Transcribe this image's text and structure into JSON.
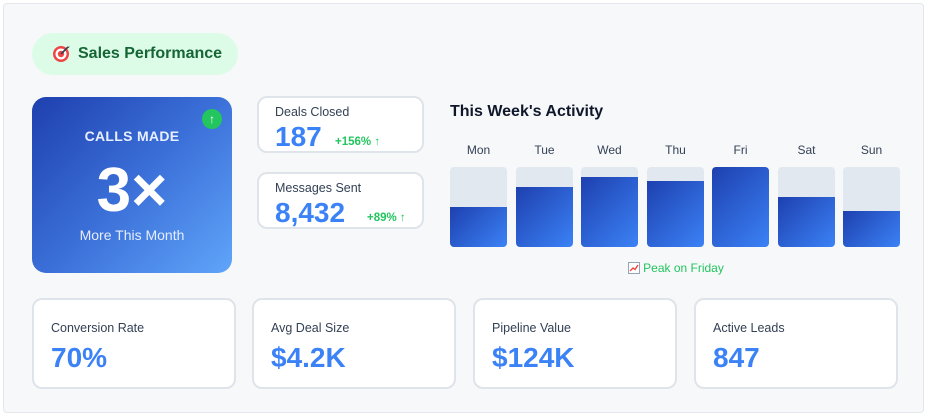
{
  "header": {
    "title": "Sales Performance",
    "icon": "target-icon"
  },
  "hero": {
    "label": "CALLS MADE",
    "value": "3×",
    "subtitle": "More This Month",
    "badge": "↑",
    "colors": {
      "gradient_start": "#1e40af",
      "gradient_end": "#60a5fa",
      "badge": "#22c55e"
    }
  },
  "metrics": [
    {
      "label": "Deals Closed",
      "value": "187",
      "change": "+156% ↑"
    },
    {
      "label": "Messages Sent",
      "value": "8,432",
      "change": "+89% ↑"
    }
  ],
  "weekly": {
    "title": "This Week's Activity",
    "chart_data": {
      "type": "bar",
      "categories": [
        "Mon",
        "Tue",
        "Wed",
        "Thu",
        "Fri",
        "Sat",
        "Sun"
      ],
      "values": [
        0.5,
        0.75,
        0.88,
        0.82,
        1.0,
        0.63,
        0.45
      ],
      "ylim": [
        0,
        1
      ]
    },
    "footnote": "Peak on Friday",
    "footnote_icon": "chart-increasing-icon"
  },
  "stats": [
    {
      "label": "Conversion Rate",
      "value": "70%"
    },
    {
      "label": "Avg Deal Size",
      "value": "$4.2K"
    },
    {
      "label": "Pipeline Value",
      "value": "$124K"
    },
    {
      "label": "Active Leads",
      "value": "847"
    }
  ],
  "colors": {
    "accent": "#3b82f6",
    "positive": "#22c55e",
    "pill_bg": "#dcfce7",
    "pill_text": "#166534"
  }
}
